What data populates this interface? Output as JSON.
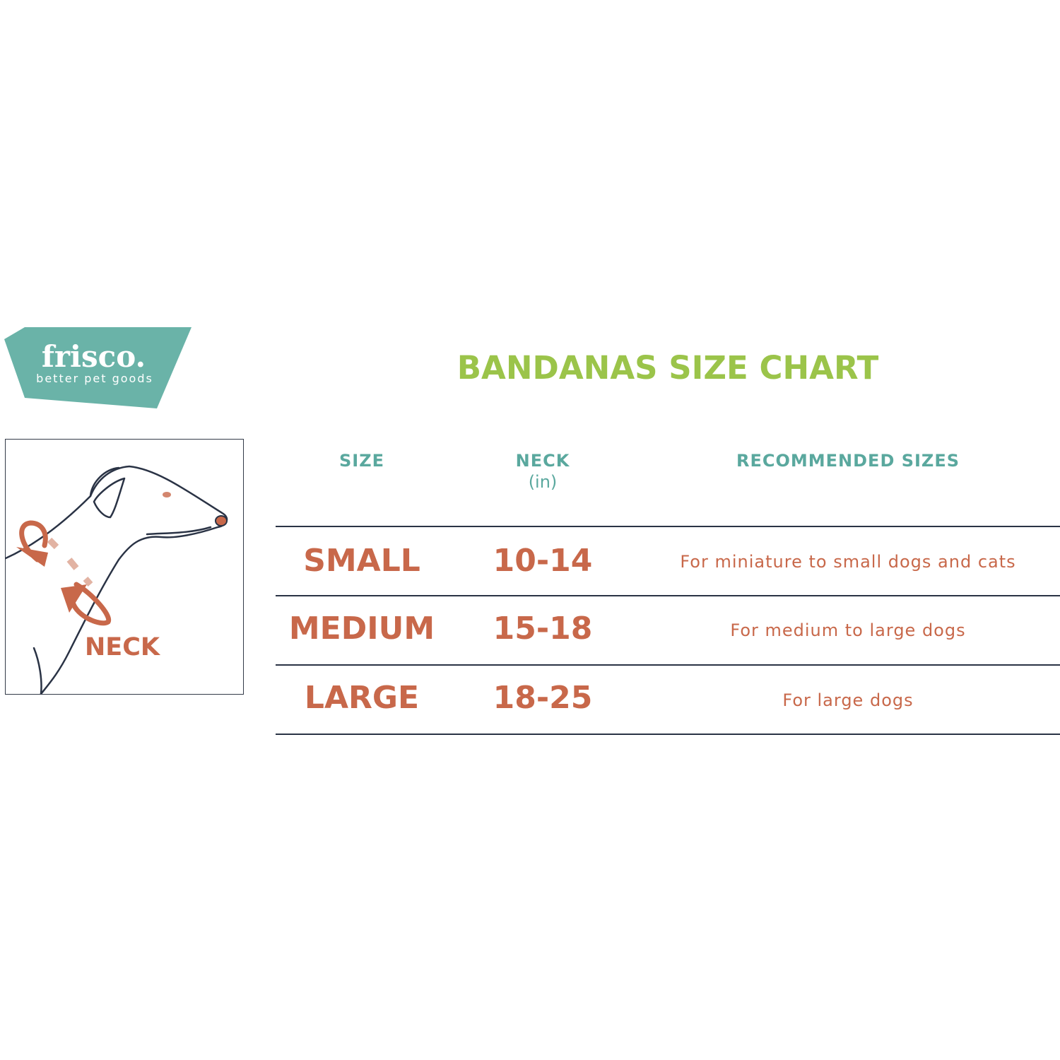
{
  "logo": {
    "name": "frisco.",
    "tagline": "better pet goods",
    "color": "#6ab3a8"
  },
  "title": "BANDANAS SIZE CHART",
  "illustration": {
    "label": "NECK",
    "accent": "#c8684a"
  },
  "table": {
    "headers": {
      "size": "SIZE",
      "neck": "NECK",
      "neck_unit": "(in)",
      "recommended": "RECOMMENDED SIZES"
    },
    "rows": [
      {
        "size": "SMALL",
        "neck": "10-14",
        "recommended": "For miniature to small dogs and cats"
      },
      {
        "size": "MEDIUM",
        "neck": "15-18",
        "recommended": "For medium to large dogs"
      },
      {
        "size": "LARGE",
        "neck": "18-25",
        "recommended": "For large dogs"
      }
    ]
  },
  "colors": {
    "title": "#9bc44a",
    "header": "#5aa89e",
    "body": "#c8684a",
    "rule": "#2a3345"
  }
}
